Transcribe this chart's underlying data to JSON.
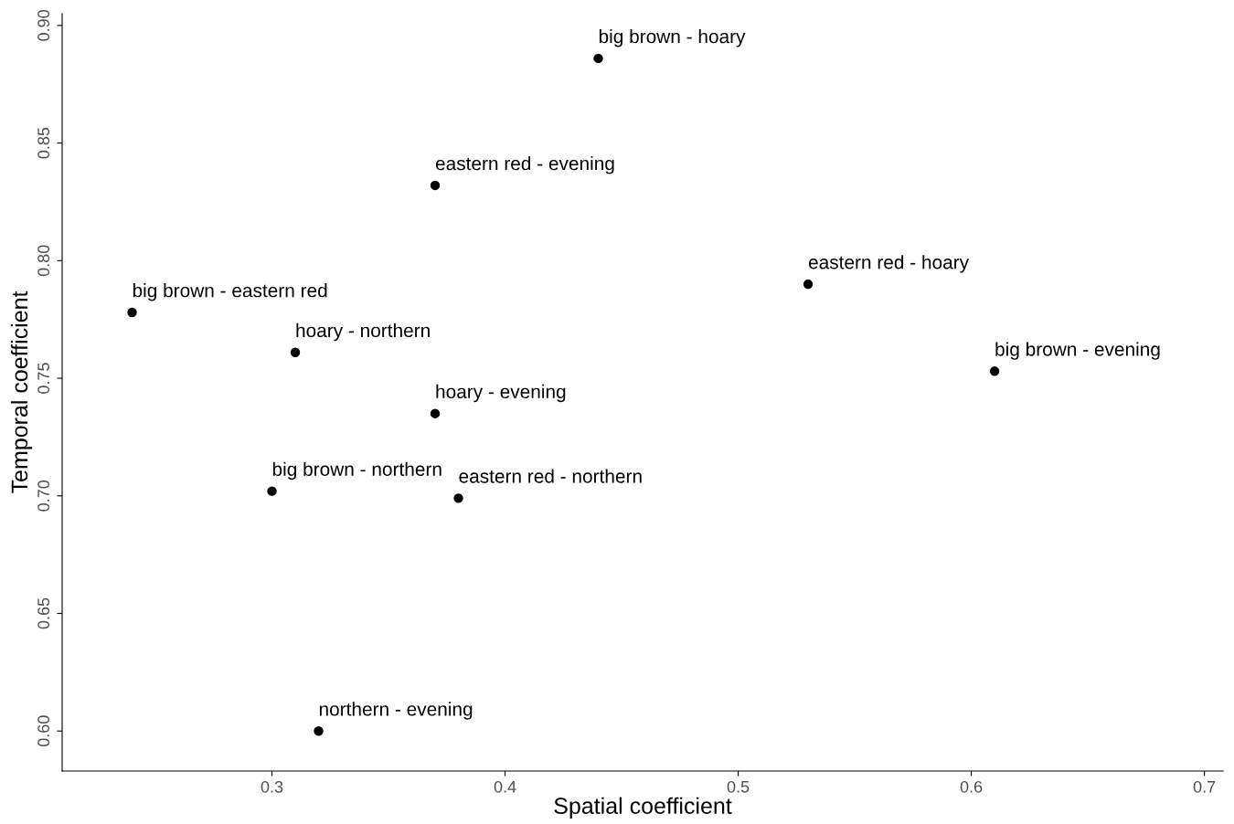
{
  "chart_data": {
    "type": "scatter",
    "xlabel": "Spatial coefficient",
    "ylabel": "Temporal coefficient",
    "x": [
      0.44,
      0.37,
      0.53,
      0.24,
      0.31,
      0.61,
      0.37,
      0.3,
      0.38,
      0.32
    ],
    "series": [
      {
        "color": "#000000",
        "values": [
          0.886,
          0.832,
          0.79,
          0.778,
          0.761,
          0.753,
          0.735,
          0.702,
          0.699,
          0.6
        ]
      }
    ],
    "marker": "circle",
    "grid": false,
    "xlim": [
      0.21,
      0.708
    ],
    "xticks": [
      0.3,
      0.4,
      0.5,
      0.6,
      0.7
    ],
    "ylim": [
      0.583,
      0.905
    ],
    "yticks": [
      {
        "value": 0.6,
        "label": "0.60"
      },
      {
        "value": 0.65,
        "label": "0.65"
      },
      {
        "value": 0.7,
        "label": "0.70"
      },
      {
        "value": 0.75,
        "label": "0.75"
      },
      {
        "value": 0.8,
        "label": "0.80"
      },
      {
        "value": 0.85,
        "label": "0.85"
      },
      {
        "value": 0.9,
        "label": "0.90"
      }
    ],
    "annotations": [
      {
        "text": "big brown - hoary",
        "x": 0.44,
        "y": 0.886
      },
      {
        "text": "eastern red - evening",
        "x": 0.37,
        "y": 0.832
      },
      {
        "text": "eastern red - hoary",
        "x": 0.53,
        "y": 0.79
      },
      {
        "text": "big brown - eastern red",
        "x": 0.24,
        "y": 0.778
      },
      {
        "text": "hoary - northern",
        "x": 0.31,
        "y": 0.761
      },
      {
        "text": "big brown - evening",
        "x": 0.61,
        "y": 0.753
      },
      {
        "text": "hoary - evening",
        "x": 0.37,
        "y": 0.735
      },
      {
        "text": "big brown - northern",
        "x": 0.3,
        "y": 0.702
      },
      {
        "text": "eastern red - northern",
        "x": 0.38,
        "y": 0.699
      },
      {
        "text": "northern - evening",
        "x": 0.32,
        "y": 0.6
      }
    ]
  }
}
